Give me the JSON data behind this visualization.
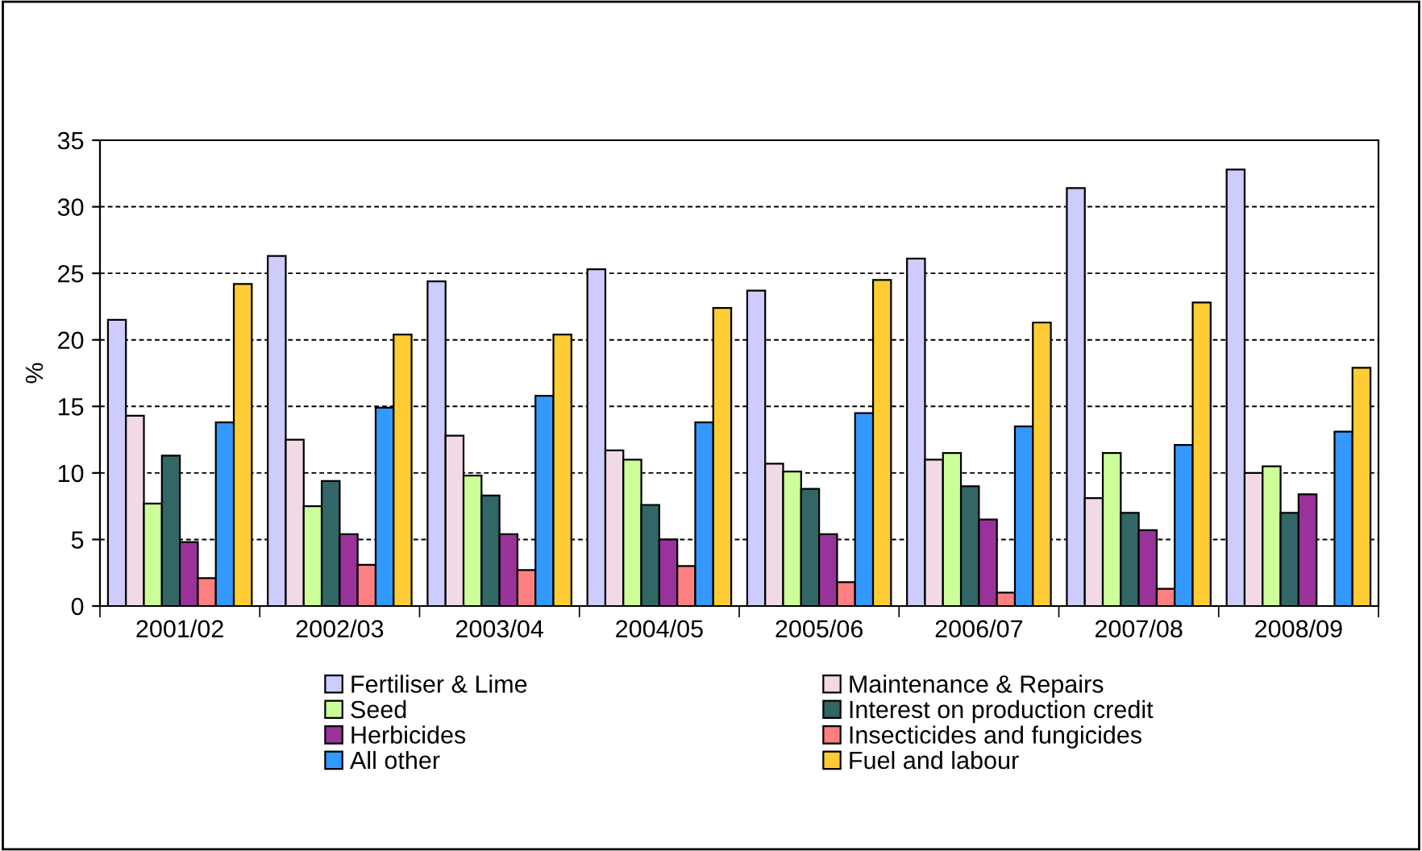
{
  "chart_data": {
    "type": "bar",
    "ylabel": "%",
    "categories": [
      "2001/02",
      "2002/03",
      "2003/04",
      "2004/05",
      "2005/06",
      "2006/07",
      "2007/08",
      "2008/09"
    ],
    "ylim": [
      0,
      35
    ],
    "yticks": [
      0,
      5,
      10,
      15,
      20,
      25,
      30,
      35
    ],
    "grid": "y",
    "legend": "bottom",
    "series": [
      {
        "name": "Fertiliser & Lime",
        "color": "#ccccff",
        "values": [
          21.5,
          26.3,
          24.4,
          25.3,
          23.7,
          26.1,
          31.4,
          32.8
        ]
      },
      {
        "name": "Maintenance & Repairs",
        "color": "#f2d9e6",
        "values": [
          14.3,
          12.5,
          12.8,
          11.7,
          10.7,
          11.0,
          8.1,
          10.0
        ]
      },
      {
        "name": "Seed",
        "color": "#ccff99",
        "values": [
          7.7,
          7.5,
          9.8,
          11.0,
          10.1,
          11.5,
          11.5,
          10.5
        ]
      },
      {
        "name": "Interest on production credit",
        "color": "#336666",
        "values": [
          11.3,
          9.4,
          8.3,
          7.6,
          8.8,
          9.0,
          7.0,
          7.0
        ]
      },
      {
        "name": "Herbicides",
        "color": "#993399",
        "values": [
          4.8,
          5.4,
          5.4,
          5.0,
          5.4,
          6.5,
          5.7,
          8.4
        ]
      },
      {
        "name": "Insecticides and fungicides",
        "color": "#ff8080",
        "values": [
          2.1,
          3.1,
          2.7,
          3.0,
          1.8,
          1.0,
          1.3,
          null
        ]
      },
      {
        "name": "All other",
        "color": "#3399ff",
        "values": [
          13.8,
          14.9,
          15.8,
          13.8,
          14.5,
          13.5,
          12.1,
          13.1
        ]
      },
      {
        "name": "Fuel and labour",
        "color": "#ffcc33",
        "values": [
          24.2,
          20.4,
          20.4,
          22.4,
          24.5,
          21.3,
          22.8,
          17.9
        ]
      }
    ]
  }
}
